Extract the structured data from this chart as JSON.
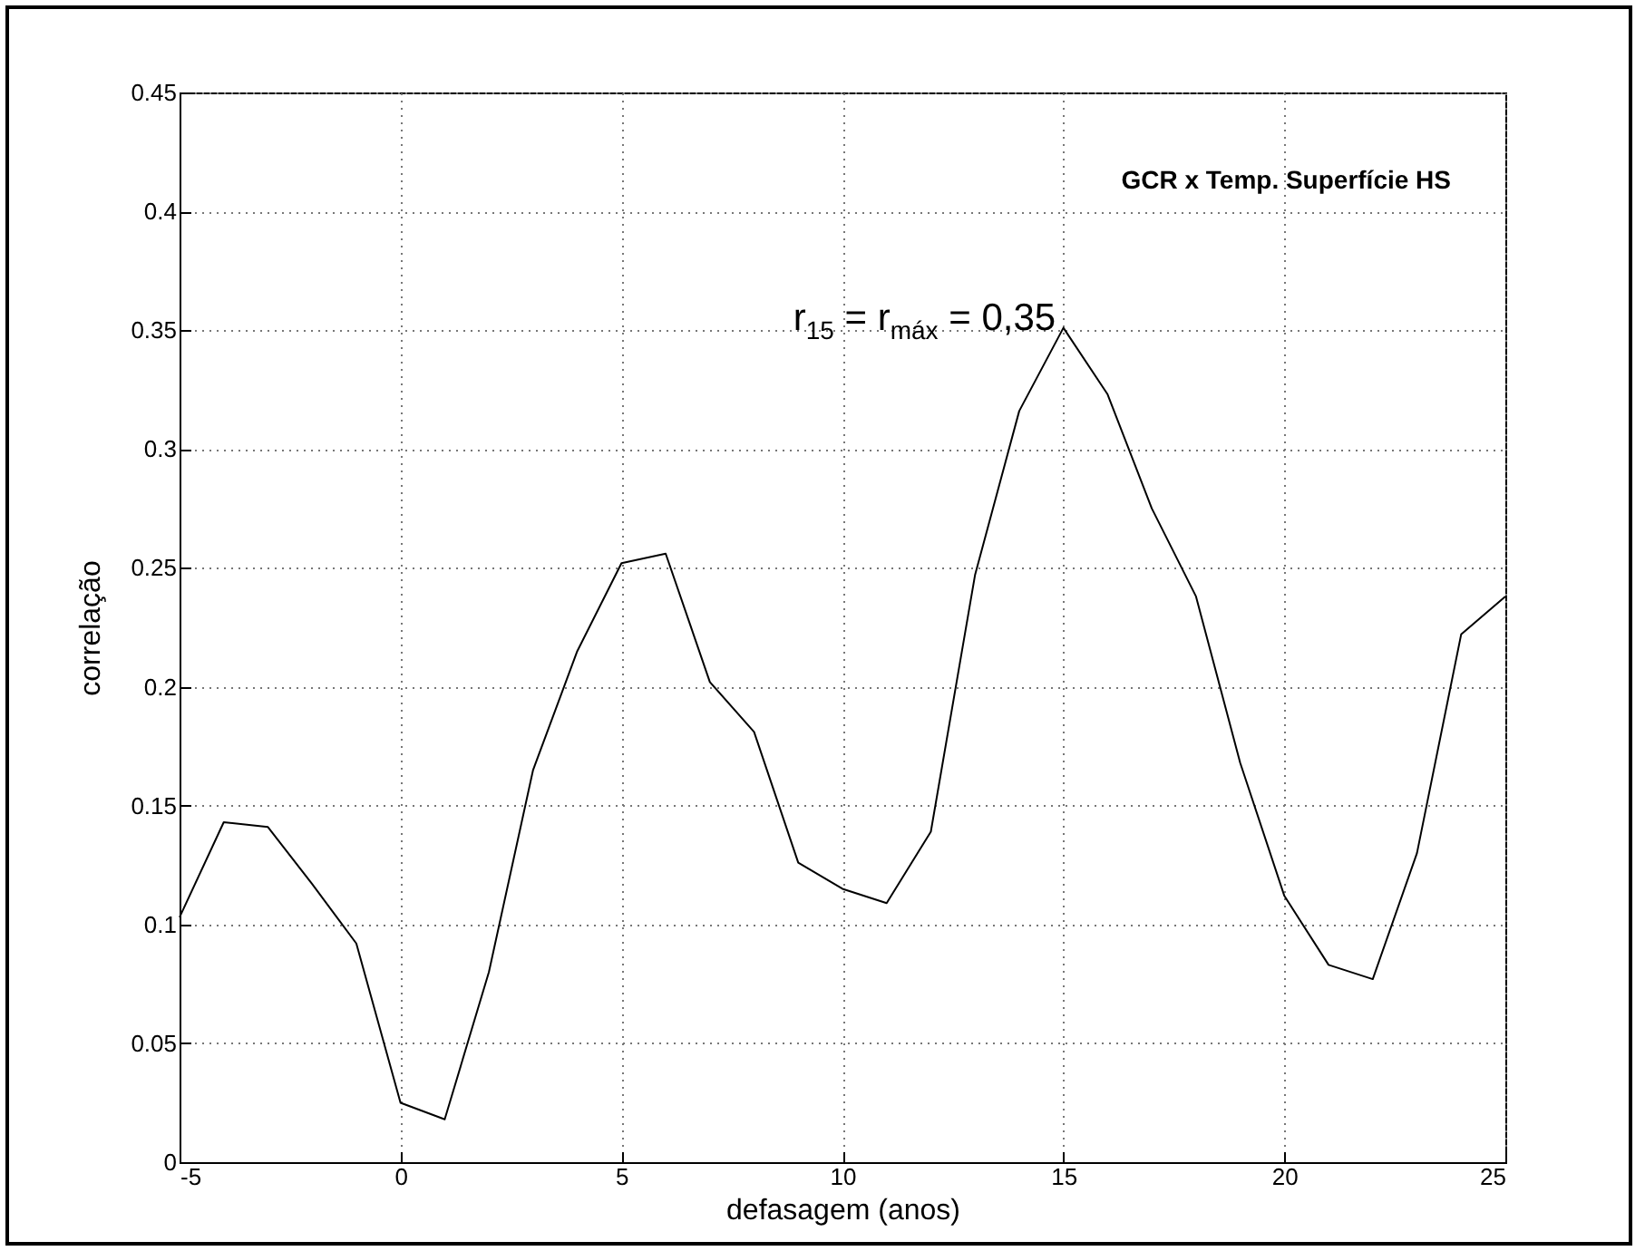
{
  "chart_data": {
    "type": "line",
    "title": "GCR x Temp. Superfície HS",
    "xlabel": "defasagem (anos)",
    "ylabel": "correlação",
    "x": [
      -5,
      -4,
      -3,
      -2,
      -1,
      0,
      1,
      2,
      3,
      4,
      5,
      6,
      7,
      8,
      9,
      10,
      11,
      12,
      13,
      14,
      15,
      16,
      17,
      18,
      19,
      20,
      21,
      22,
      23,
      24,
      25
    ],
    "series": [
      {
        "color": "#000000",
        "values": [
          0.103,
          0.143,
          0.141,
          0.117,
          0.092,
          0.025,
          0.018,
          0.08,
          0.165,
          0.215,
          0.252,
          0.256,
          0.202,
          0.181,
          0.126,
          0.115,
          0.109,
          0.139,
          0.247,
          0.316,
          0.351,
          0.323,
          0.275,
          0.238,
          0.168,
          0.112,
          0.083,
          0.077,
          0.13,
          0.222,
          0.238
        ]
      }
    ],
    "xlim": [
      -5,
      25
    ],
    "xticks": [
      -5,
      0,
      5,
      10,
      15,
      20,
      25
    ],
    "ylim": [
      0,
      0.45
    ],
    "yticks": [
      0,
      0.05,
      0.1,
      0.15,
      0.2,
      0.25,
      0.3,
      0.35,
      0.4,
      0.45
    ],
    "grid": true,
    "marker": "none",
    "line_style": "solid",
    "annotations": [
      {
        "text": "r$_{15}$ = r$_{máx}$ = 0,35",
        "x": 15,
        "y": 0.35
      }
    ]
  }
}
